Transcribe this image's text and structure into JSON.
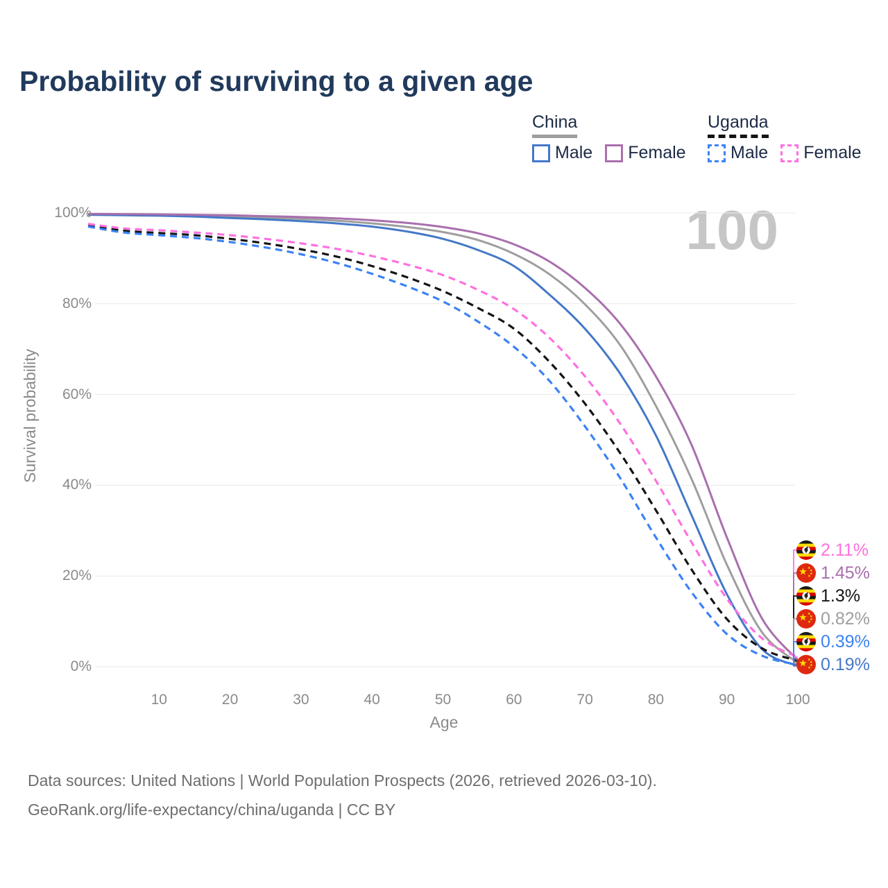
{
  "title": "Probability of surviving to a given age",
  "watermark_age": "100",
  "legend": {
    "groups": [
      {
        "label": "China",
        "line_style": "solid",
        "line_color": "#9e9e9e",
        "items": [
          {
            "label": "Male",
            "color": "#4478c8",
            "style": "solid"
          },
          {
            "label": "Female",
            "color": "#a86fad",
            "style": "solid"
          }
        ]
      },
      {
        "label": "Uganda",
        "line_style": "dashed",
        "line_color": "#141414",
        "items": [
          {
            "label": "Male",
            "color": "#3b82f6",
            "style": "dashed"
          },
          {
            "label": "Female",
            "color": "#ff70e0",
            "style": "dashed"
          }
        ]
      }
    ]
  },
  "chart_data": {
    "type": "line",
    "title": "Probability of surviving to a given age",
    "xlabel": "Age",
    "ylabel": "Survival probability",
    "xlim": [
      0,
      100
    ],
    "ylim": [
      0,
      100
    ],
    "x_ticks": [
      10,
      20,
      30,
      40,
      50,
      60,
      70,
      80,
      90,
      100
    ],
    "y_ticks": [
      0,
      20,
      40,
      60,
      80,
      100
    ],
    "y_tick_suffix": "%",
    "grid": "horizontal",
    "legend_position": "top-right",
    "x": [
      0,
      5,
      10,
      15,
      20,
      25,
      30,
      35,
      40,
      45,
      50,
      55,
      60,
      65,
      70,
      75,
      80,
      85,
      90,
      95,
      100
    ],
    "series": [
      {
        "name": "China",
        "country": "China",
        "sex": "All",
        "color": "#9e9e9e",
        "dash": false,
        "end_label": "0.82%",
        "values": [
          99.7,
          99.6,
          99.5,
          99.4,
          99.2,
          99.0,
          98.7,
          98.3,
          97.7,
          96.9,
          95.8,
          94.0,
          91.0,
          86.5,
          79.9,
          70.8,
          57.5,
          41.5,
          22.5,
          7.5,
          0.82
        ]
      },
      {
        "name": "China Male",
        "country": "China",
        "sex": "Male",
        "color": "#4478c8",
        "dash": false,
        "end_label": "0.19%",
        "values": [
          99.6,
          99.5,
          99.4,
          99.2,
          98.9,
          98.6,
          98.2,
          97.7,
          97.0,
          95.9,
          94.3,
          91.8,
          88.3,
          82.0,
          74.5,
          64.5,
          51.0,
          33.5,
          16.0,
          3.8,
          0.19
        ]
      },
      {
        "name": "China Female",
        "country": "China",
        "sex": "Female",
        "color": "#a86fad",
        "dash": false,
        "end_label": "1.45%",
        "values": [
          99.8,
          99.75,
          99.7,
          99.6,
          99.5,
          99.3,
          99.1,
          98.8,
          98.4,
          97.8,
          96.9,
          95.5,
          93.1,
          89.3,
          83.5,
          75.5,
          64.0,
          49.0,
          28.5,
          10.5,
          1.45
        ]
      },
      {
        "name": "Uganda",
        "country": "Uganda",
        "sex": "All",
        "color": "#141414",
        "dash": true,
        "end_label": "1.3%",
        "values": [
          97.3,
          96.1,
          95.6,
          95.1,
          94.3,
          93.3,
          92.0,
          90.4,
          88.3,
          85.8,
          82.8,
          79.0,
          74.5,
          67.2,
          58.0,
          47.0,
          34.5,
          21.5,
          10.5,
          4.0,
          1.3
        ]
      },
      {
        "name": "Uganda Male",
        "country": "Uganda",
        "sex": "Male",
        "color": "#3b82f6",
        "dash": true,
        "end_label": "0.39%",
        "values": [
          97.0,
          95.7,
          95.1,
          94.5,
          93.6,
          92.4,
          90.9,
          89.0,
          86.6,
          83.8,
          80.5,
          76.0,
          70.5,
          63.0,
          53.0,
          41.5,
          28.5,
          16.5,
          7.2,
          2.4,
          0.39
        ]
      },
      {
        "name": "Uganda Female",
        "country": "Uganda",
        "sex": "Female",
        "color": "#ff70e0",
        "dash": true,
        "end_label": "2.11%",
        "values": [
          97.6,
          96.6,
          96.2,
          95.7,
          95.1,
          94.3,
          93.3,
          92.1,
          90.5,
          88.6,
          86.3,
          83.0,
          78.8,
          72.5,
          64.0,
          53.5,
          41.0,
          27.5,
          15.0,
          6.2,
          2.11
        ]
      }
    ]
  },
  "end_labels": [
    {
      "series_index": 5,
      "flag": "uganda",
      "text": "2.11%",
      "color": "#ff70e0"
    },
    {
      "series_index": 2,
      "flag": "china",
      "text": "1.45%",
      "color": "#a86fad"
    },
    {
      "series_index": 3,
      "flag": "uganda",
      "text": "1.3%",
      "color": "#141414"
    },
    {
      "series_index": 0,
      "flag": "china",
      "text": "0.82%",
      "color": "#9e9e9e"
    },
    {
      "series_index": 4,
      "flag": "uganda",
      "text": "0.39%",
      "color": "#3b82f6"
    },
    {
      "series_index": 1,
      "flag": "china",
      "text": "0.19%",
      "color": "#4478c8"
    }
  ],
  "footer": {
    "line1": "Data sources: United Nations | World Population Prospects (2026, retrieved 2026-03-10).",
    "line2": "GeoRank.org/life-expectancy/china/uganda | CC BY"
  }
}
